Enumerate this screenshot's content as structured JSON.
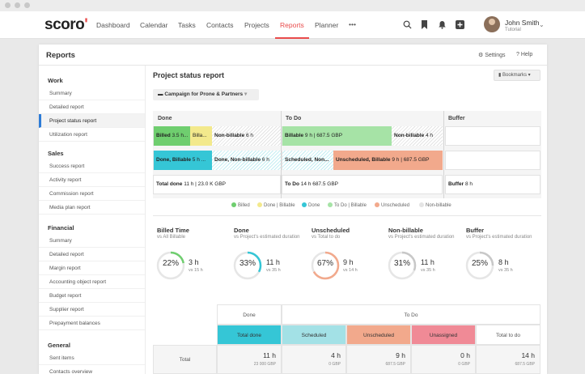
{
  "app": {
    "logo": "scoro"
  },
  "nav": {
    "items": [
      "Dashboard",
      "Calendar",
      "Tasks",
      "Contacts",
      "Projects",
      "Reports",
      "Planner",
      "•••"
    ],
    "active": "Reports"
  },
  "user": {
    "name": "John Smith",
    "subtitle": "Tutorial"
  },
  "panel": {
    "title": "Reports",
    "settings_label": "Settings",
    "help_label": "Help"
  },
  "sidebar": {
    "sections": [
      {
        "title": "Work",
        "items": [
          "Summary",
          "Detailed report",
          "Project status report",
          "Utilization report"
        ]
      },
      {
        "title": "Sales",
        "items": [
          "Success report",
          "Activity report",
          "Commission report",
          "Media plan report"
        ]
      },
      {
        "title": "Financial",
        "items": [
          "Summary",
          "Detailed report",
          "Margin report",
          "Accounting object report",
          "Budget report",
          "Supplier report",
          "Prepayment balances"
        ]
      },
      {
        "title": "General",
        "items": [
          "Sent items",
          "Contacts overview"
        ]
      }
    ],
    "active_item": "Project status report"
  },
  "main": {
    "title": "Project status report",
    "bookmarks_label": "Bookmarks",
    "filter": "Campaign for Prone & Partners"
  },
  "status_grid": {
    "columns": [
      "Done",
      "To Do",
      "Buffer"
    ],
    "row1": {
      "billed": "Billed 3.5 h...",
      "billed_bold": "Billed",
      "billed_rest": " 3.5 h...",
      "done_billable": "Billa...",
      "non_billable_done": "Non-billable",
      "non_billable_done_val": " 6 h",
      "billable_todo": "Billable",
      "billable_todo_val": " 9 h | 687.5 GBP",
      "non_billable_todo": "Non-billable",
      "non_billable_todo_val": " 4 h"
    },
    "row2": {
      "done_billable": "Done, Billable",
      "done_billable_val": " 5 h ...",
      "done_non_billable": "Done, Non-billable",
      "done_non_billable_val": " 6 h",
      "scheduled": "Scheduled, Non...",
      "unscheduled": "Unscheduled, Billable",
      "unscheduled_val": " 9 h | 687.5 GBP"
    },
    "totals": {
      "done_label": "Total done",
      "done_val": " 11 h | 23.0 K GBP",
      "todo_label": "To Do",
      "todo_val": " 14 h 687.5 GBP",
      "buffer_label": "Buffer",
      "buffer_val": " 8 h"
    }
  },
  "legend": [
    "Billed",
    "Done | Billable",
    "Done",
    "To Do | Billable",
    "Unscheduled",
    "Non-billable"
  ],
  "legend_colors": [
    "#6fce6f",
    "#f3e98c",
    "#35c6d6",
    "#a6e3a6",
    "#f2a98c",
    "#e4e4e4"
  ],
  "kpis": [
    {
      "title": "Billed Time",
      "sub": "vs All Billable",
      "pct": 22,
      "pct_label": "22%",
      "value": "3 h",
      "vs": "vs 15 h",
      "color": "#6fce6f"
    },
    {
      "title": "Done",
      "sub": "vs Project's estimated duration",
      "pct": 33,
      "pct_label": "33%",
      "value": "11 h",
      "vs": "vs 35 h",
      "color": "#35c6d6"
    },
    {
      "title": "Unscheduled",
      "sub": "vs Total to do",
      "pct": 67,
      "pct_label": "67%",
      "value": "9 h",
      "vs": "vs 14 h",
      "color": "#f2a98c"
    },
    {
      "title": "Non-billable",
      "sub": "vs Project's estimated duration",
      "pct": 31,
      "pct_label": "31%",
      "value": "11 h",
      "vs": "vs 35 h",
      "color": "#c8c8c8"
    },
    {
      "title": "Buffer",
      "sub": "vs Project's estimated duration",
      "pct": 25,
      "pct_label": "25%",
      "value": "8 h",
      "vs": "vs 35 h",
      "color": "#c8c8c8"
    }
  ],
  "table": {
    "group_done": "Done",
    "group_todo": "To Do",
    "headers": [
      "Total done",
      "Scheduled",
      "Unscheduled",
      "Unassigned",
      "Total to do"
    ],
    "header_colors": [
      "#35c6d6",
      "#a3e1e6",
      "#f2a98c",
      "#f08a96",
      "#ffffff"
    ],
    "row_label": "Total",
    "values": [
      "11 h",
      "4 h",
      "9 h",
      "0 h",
      "14 h"
    ],
    "subs": [
      "23 000 GBP",
      "0 GBP",
      "687.5 GBP",
      "0 GBP",
      "687.5 GBP"
    ]
  }
}
